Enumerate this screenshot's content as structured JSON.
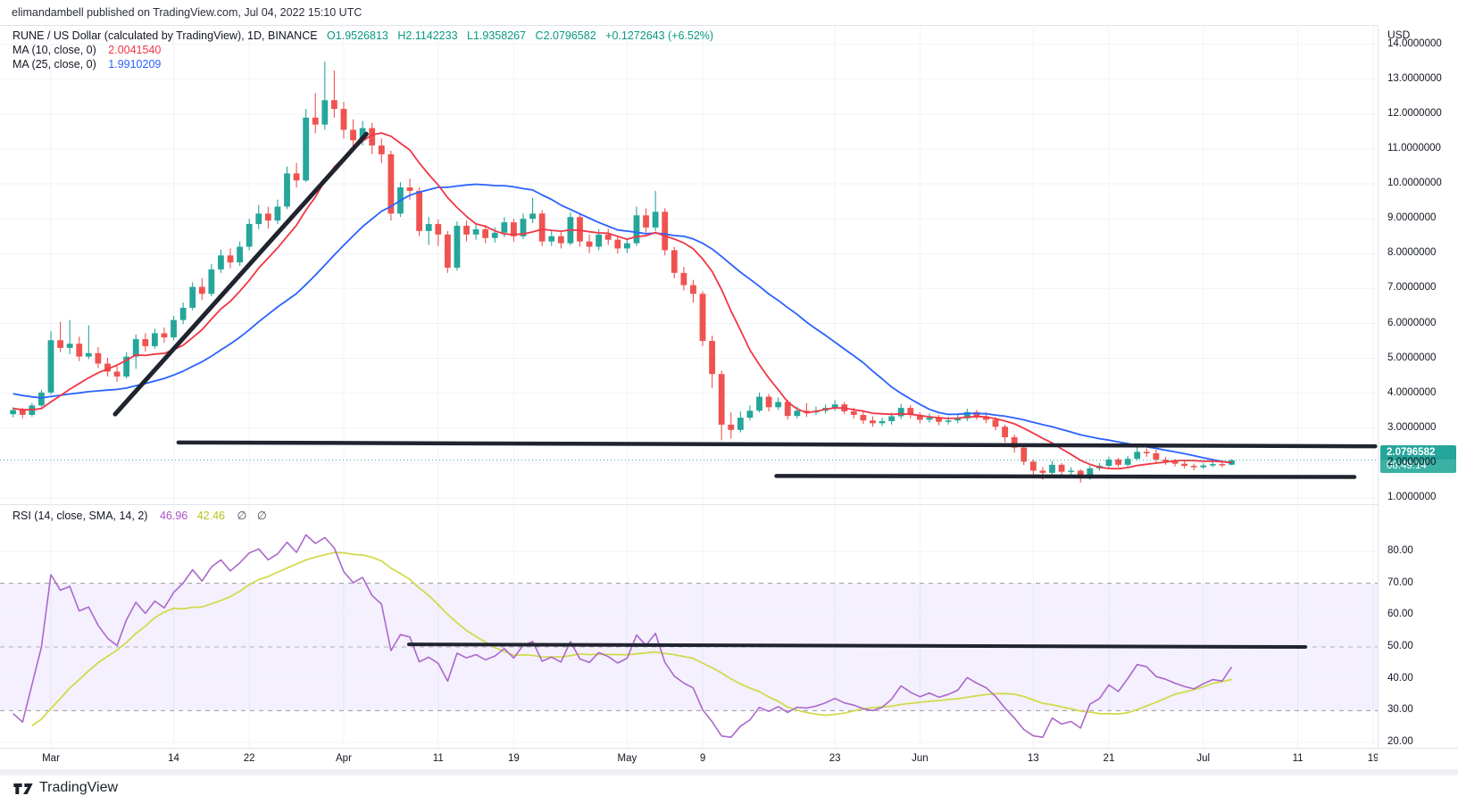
{
  "header": {
    "title": "elimandambell published on TradingView.com, Jul 04, 2022 15:10 UTC"
  },
  "legend": {
    "symbol": "RUNE / US Dollar (calculated by TradingView), 1D, BINANCE",
    "open": "O1.9526813",
    "high": "H2.1142233",
    "low": "L1.9358267",
    "close": "C2.0796582",
    "change": "+0.1272643 (+6.52%)",
    "ma10_label": "MA (10, close, 0)",
    "ma10_value": "2.0041540",
    "ma25_label": "MA (25, close, 0)",
    "ma25_value": "1.9910209",
    "rsi_label": "RSI (14, close, SMA, 14, 2)",
    "rsi_value": "46.96",
    "rsi_sma_value": "42.46",
    "rsi_empty": "∅ ∅"
  },
  "price_axis": {
    "unit": "USD",
    "current_price": "2.0796582",
    "countdown": "08:49:14"
  },
  "footer": {
    "brand": "TradingView"
  },
  "colors": {
    "up": "#26a69a",
    "down": "#ef5350",
    "ma10": "#f23645",
    "ma25": "#2962ff",
    "rsi": "#ab68cc",
    "rsi_sma": "#d2da4e",
    "drawing": "#20242f",
    "grid": "#f0f3fa",
    "band_fill": "rgba(136,94,230,0.09)",
    "band_edge": "#787b86",
    "band_mid": "#9b9ea6",
    "current_line": "#26a69a",
    "accent_teal": "#089981"
  },
  "chart_data": {
    "type": "candlestick",
    "title": "RUNE / US Dollar (calculated by TradingView), 1D, BINANCE",
    "ylabel": "USD",
    "start_date": "2022-02-25",
    "ylim": [
      0.6,
      14.6
    ],
    "grid": true,
    "price_ticks": [
      1,
      2,
      3,
      4,
      5,
      6,
      7,
      8,
      9,
      10,
      11,
      12,
      13,
      14
    ],
    "rsi_ticks": [
      80,
      70,
      60,
      50,
      40,
      30,
      20
    ],
    "rsi_grid": [
      20,
      40,
      60,
      80
    ],
    "rsi_bands": {
      "upper": 70,
      "middle": 50,
      "lower": 30
    },
    "current_price": 2.0796582,
    "time_ticks": [
      {
        "label": "Mar",
        "day": 4
      },
      {
        "label": "14",
        "day": 17
      },
      {
        "label": "22",
        "day": 25
      },
      {
        "label": "Apr",
        "day": 35
      },
      {
        "label": "11",
        "day": 45
      },
      {
        "label": "19",
        "day": 53
      },
      {
        "label": "May",
        "day": 65
      },
      {
        "label": "9",
        "day": 73
      },
      {
        "label": "23",
        "day": 87
      },
      {
        "label": "Jun",
        "day": 96
      },
      {
        "label": "13",
        "day": 108
      },
      {
        "label": "21",
        "day": 116
      },
      {
        "label": "Jul",
        "day": 126
      },
      {
        "label": "11",
        "day": 136
      },
      {
        "label": "19",
        "day": 144
      }
    ],
    "indicators": {
      "ma10": {
        "type": "sma",
        "period": 10
      },
      "ma25": {
        "type": "sma",
        "period": 25
      },
      "rsi": {
        "period": 14,
        "smoothing_period": 14
      }
    },
    "drawings": {
      "trendline": {
        "d0": 10.8,
        "p0": 3.4,
        "d1": 37.4,
        "p1": 11.43
      },
      "resistance": {
        "d0": 17.5,
        "p0": 2.59,
        "d1": 144.2,
        "p1": 2.48
      },
      "support": {
        "d0": 80.8,
        "p0": 1.63,
        "d1": 142.0,
        "p1": 1.6
      },
      "rsi_line": {
        "d0": 41.9,
        "v0": 50.8,
        "d1": 136.8,
        "v1": 50.0
      }
    },
    "warmup_closes": [
      4.85,
      4.7,
      4.6,
      4.75,
      4.55,
      4.4,
      4.5,
      4.3,
      4.2,
      4.3,
      4.1,
      4.0,
      4.05,
      3.9,
      3.8,
      3.9,
      3.75,
      3.65,
      3.7,
      3.6,
      3.5,
      3.55,
      3.45,
      3.5,
      3.42
    ],
    "candles": [
      [
        "02-25",
        3.4,
        3.6,
        3.31,
        3.52
      ],
      [
        "02-26",
        3.52,
        3.58,
        3.28,
        3.38
      ],
      [
        "02-27",
        3.38,
        3.72,
        3.33,
        3.65
      ],
      [
        "02-28",
        3.65,
        4.1,
        3.6,
        4.02
      ],
      [
        "03-01",
        4.02,
        5.78,
        3.96,
        5.52
      ],
      [
        "03-02",
        5.52,
        6.05,
        5.18,
        5.3
      ],
      [
        "03-03",
        5.3,
        6.1,
        5.12,
        5.42
      ],
      [
        "03-04",
        5.42,
        5.62,
        4.92,
        5.05
      ],
      [
        "03-05",
        5.05,
        5.95,
        4.98,
        5.15
      ],
      [
        "03-06",
        5.15,
        5.32,
        4.72,
        4.85
      ],
      [
        "03-07",
        4.85,
        5.02,
        4.48,
        4.62
      ],
      [
        "03-08",
        4.62,
        4.8,
        4.33,
        4.48
      ],
      [
        "03-09",
        4.48,
        5.18,
        4.42,
        5.05
      ],
      [
        "03-10",
        5.05,
        5.68,
        4.7,
        5.55
      ],
      [
        "03-11",
        5.55,
        5.72,
        5.2,
        5.35
      ],
      [
        "03-12",
        5.35,
        5.85,
        5.28,
        5.72
      ],
      [
        "03-13",
        5.72,
        5.88,
        5.45,
        5.6
      ],
      [
        "03-14",
        5.6,
        6.22,
        5.52,
        6.1
      ],
      [
        "03-15",
        6.1,
        6.6,
        5.98,
        6.45
      ],
      [
        "03-16",
        6.45,
        7.18,
        6.38,
        7.05
      ],
      [
        "03-17",
        7.05,
        7.3,
        6.68,
        6.85
      ],
      [
        "03-18",
        6.85,
        7.7,
        6.78,
        7.55
      ],
      [
        "03-19",
        7.55,
        8.12,
        7.45,
        7.95
      ],
      [
        "03-20",
        7.95,
        8.15,
        7.58,
        7.75
      ],
      [
        "03-21",
        7.75,
        8.35,
        7.65,
        8.2
      ],
      [
        "03-22",
        8.2,
        9.0,
        8.1,
        8.85
      ],
      [
        "03-23",
        8.85,
        9.4,
        8.7,
        9.15
      ],
      [
        "03-24",
        9.15,
        9.35,
        8.72,
        8.95
      ],
      [
        "03-25",
        8.95,
        9.55,
        8.85,
        9.35
      ],
      [
        "03-26",
        9.35,
        10.5,
        9.28,
        10.3
      ],
      [
        "03-27",
        10.3,
        10.6,
        9.9,
        10.1
      ],
      [
        "03-28",
        10.1,
        12.15,
        10.05,
        11.9
      ],
      [
        "03-29",
        11.9,
        12.6,
        11.45,
        11.7
      ],
      [
        "03-30",
        11.7,
        13.5,
        11.55,
        12.4
      ],
      [
        "03-31",
        12.4,
        13.25,
        11.9,
        12.15
      ],
      [
        "04-01",
        12.15,
        12.35,
        11.3,
        11.55
      ],
      [
        "04-02",
        11.55,
        11.85,
        11.05,
        11.25
      ],
      [
        "04-03",
        11.25,
        11.8,
        11.1,
        11.6
      ],
      [
        "04-04",
        11.6,
        11.75,
        10.85,
        11.1
      ],
      [
        "04-05",
        11.1,
        11.3,
        10.6,
        10.85
      ],
      [
        "04-06",
        10.85,
        10.95,
        8.95,
        9.15
      ],
      [
        "04-07",
        9.15,
        10.05,
        9.05,
        9.9
      ],
      [
        "04-08",
        9.9,
        10.15,
        9.55,
        9.8
      ],
      [
        "04-09",
        9.8,
        9.9,
        8.5,
        8.65
      ],
      [
        "04-10",
        8.65,
        9.05,
        8.25,
        8.85
      ],
      [
        "04-11",
        8.85,
        8.98,
        8.22,
        8.55
      ],
      [
        "04-12",
        8.55,
        8.65,
        7.45,
        7.6
      ],
      [
        "04-13",
        7.6,
        8.92,
        7.52,
        8.8
      ],
      [
        "04-14",
        8.8,
        8.95,
        8.35,
        8.55
      ],
      [
        "04-15",
        8.55,
        8.85,
        8.4,
        8.7
      ],
      [
        "04-16",
        8.7,
        8.82,
        8.3,
        8.45
      ],
      [
        "04-17",
        8.45,
        8.75,
        8.32,
        8.6
      ],
      [
        "04-18",
        8.6,
        9.05,
        8.48,
        8.9
      ],
      [
        "04-19",
        8.9,
        9.0,
        8.35,
        8.5
      ],
      [
        "04-20",
        8.5,
        9.15,
        8.42,
        9.0
      ],
      [
        "04-21",
        9.0,
        9.6,
        8.88,
        9.15
      ],
      [
        "04-22",
        9.15,
        9.25,
        8.22,
        8.35
      ],
      [
        "04-23",
        8.35,
        8.68,
        8.22,
        8.5
      ],
      [
        "04-24",
        8.5,
        8.62,
        8.15,
        8.3
      ],
      [
        "04-25",
        8.3,
        9.18,
        8.24,
        9.05
      ],
      [
        "04-26",
        9.05,
        9.12,
        8.2,
        8.35
      ],
      [
        "04-27",
        8.35,
        8.55,
        8.02,
        8.2
      ],
      [
        "04-28",
        8.2,
        8.7,
        8.1,
        8.55
      ],
      [
        "04-29",
        8.55,
        8.72,
        8.25,
        8.4
      ],
      [
        "04-30",
        8.4,
        8.52,
        8.0,
        8.15
      ],
      [
        "05-01",
        8.15,
        8.45,
        8.02,
        8.3
      ],
      [
        "05-02",
        8.3,
        9.35,
        8.22,
        9.1
      ],
      [
        "05-03",
        9.1,
        9.3,
        8.6,
        8.75
      ],
      [
        "05-04",
        8.75,
        9.8,
        8.65,
        9.2
      ],
      [
        "05-05",
        9.2,
        9.3,
        7.95,
        8.1
      ],
      [
        "05-06",
        8.1,
        8.2,
        7.3,
        7.45
      ],
      [
        "05-07",
        7.45,
        7.62,
        6.95,
        7.1
      ],
      [
        "05-08",
        7.1,
        7.25,
        6.6,
        6.85
      ],
      [
        "05-09",
        6.85,
        6.92,
        5.35,
        5.5
      ],
      [
        "05-10",
        5.5,
        5.65,
        4.15,
        4.55
      ],
      [
        "05-11",
        4.55,
        4.65,
        2.65,
        3.1
      ],
      [
        "05-12",
        3.1,
        3.45,
        2.7,
        2.95
      ],
      [
        "05-13",
        2.95,
        3.48,
        2.88,
        3.3
      ],
      [
        "05-14",
        3.3,
        3.65,
        3.22,
        3.5
      ],
      [
        "05-15",
        3.5,
        4.02,
        3.45,
        3.9
      ],
      [
        "05-16",
        3.9,
        3.98,
        3.48,
        3.6
      ],
      [
        "05-17",
        3.6,
        3.88,
        3.52,
        3.75
      ],
      [
        "05-18",
        3.75,
        3.82,
        3.25,
        3.35
      ],
      [
        "05-19",
        3.35,
        3.62,
        3.28,
        3.5
      ],
      [
        "05-20",
        3.5,
        3.72,
        3.32,
        3.45
      ],
      [
        "05-21",
        3.45,
        3.62,
        3.38,
        3.5
      ],
      [
        "05-22",
        3.5,
        3.68,
        3.42,
        3.58
      ],
      [
        "05-23",
        3.58,
        3.8,
        3.5,
        3.68
      ],
      [
        "05-24",
        3.68,
        3.75,
        3.4,
        3.48
      ],
      [
        "05-25",
        3.48,
        3.58,
        3.28,
        3.38
      ],
      [
        "05-26",
        3.38,
        3.48,
        3.12,
        3.22
      ],
      [
        "05-27",
        3.22,
        3.34,
        3.04,
        3.14
      ],
      [
        "05-28",
        3.14,
        3.3,
        3.06,
        3.2
      ],
      [
        "05-29",
        3.2,
        3.44,
        3.1,
        3.34
      ],
      [
        "05-30",
        3.34,
        3.7,
        3.26,
        3.58
      ],
      [
        "05-31",
        3.58,
        3.66,
        3.28,
        3.38
      ],
      [
        "06-01",
        3.38,
        3.46,
        3.14,
        3.24
      ],
      [
        "06-02",
        3.24,
        3.42,
        3.16,
        3.3
      ],
      [
        "06-03",
        3.3,
        3.38,
        3.08,
        3.18
      ],
      [
        "06-04",
        3.18,
        3.32,
        3.1,
        3.22
      ],
      [
        "06-05",
        3.22,
        3.38,
        3.14,
        3.28
      ],
      [
        "06-06",
        3.28,
        3.56,
        3.2,
        3.46
      ],
      [
        "06-07",
        3.46,
        3.52,
        3.24,
        3.34
      ],
      [
        "06-08",
        3.34,
        3.46,
        3.14,
        3.24
      ],
      [
        "06-09",
        3.24,
        3.32,
        2.94,
        3.04
      ],
      [
        "06-10",
        3.04,
        3.1,
        2.6,
        2.74
      ],
      [
        "06-11",
        2.74,
        2.82,
        2.3,
        2.44
      ],
      [
        "06-12",
        2.44,
        2.5,
        1.94,
        2.04
      ],
      [
        "06-13",
        2.04,
        2.1,
        1.6,
        1.78
      ],
      [
        "06-14",
        1.78,
        1.88,
        1.52,
        1.72
      ],
      [
        "06-15",
        1.72,
        2.06,
        1.64,
        1.95
      ],
      [
        "06-16",
        1.95,
        2.0,
        1.65,
        1.75
      ],
      [
        "06-17",
        1.75,
        1.88,
        1.62,
        1.78
      ],
      [
        "06-18",
        1.78,
        1.82,
        1.44,
        1.56
      ],
      [
        "06-19",
        1.56,
        1.92,
        1.52,
        1.85
      ],
      [
        "06-20",
        1.85,
        2.0,
        1.78,
        1.92
      ],
      [
        "06-21",
        1.92,
        2.18,
        1.86,
        2.1
      ],
      [
        "06-22",
        2.1,
        2.15,
        1.88,
        1.95
      ],
      [
        "06-23",
        1.95,
        2.2,
        1.9,
        2.12
      ],
      [
        "06-24",
        2.12,
        2.45,
        2.08,
        2.32
      ],
      [
        "06-25",
        2.32,
        2.42,
        2.18,
        2.28
      ],
      [
        "06-26",
        2.28,
        2.38,
        2.02,
        2.1
      ],
      [
        "06-27",
        2.1,
        2.18,
        1.95,
        2.05
      ],
      [
        "06-28",
        2.05,
        2.12,
        1.9,
        1.98
      ],
      [
        "06-29",
        1.98,
        2.05,
        1.85,
        1.92
      ],
      [
        "06-30",
        1.92,
        1.98,
        1.8,
        1.88
      ],
      [
        "07-01",
        1.88,
        2.0,
        1.83,
        1.93
      ],
      [
        "07-02",
        1.93,
        2.04,
        1.88,
        1.97
      ],
      [
        "07-03",
        1.97,
        2.02,
        1.88,
        1.95
      ],
      [
        "07-04",
        1.9526813,
        2.1142233,
        1.9358267,
        2.0796582
      ]
    ]
  }
}
